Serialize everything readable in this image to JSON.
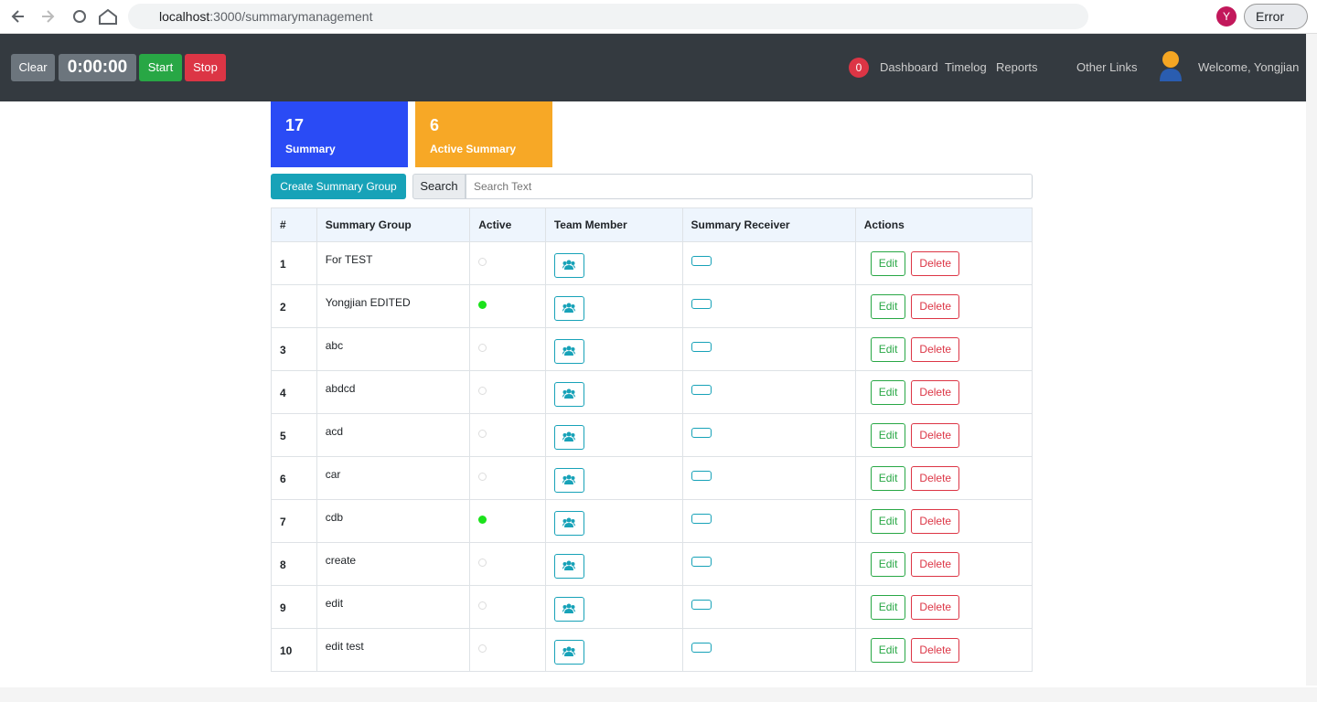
{
  "browser": {
    "url_host": "localhost",
    "url_path": ":3000/summarymanagement",
    "profile": "Y",
    "status": "Error"
  },
  "navbar": {
    "clear": "Clear",
    "timer": "0:00:00",
    "start": "Start",
    "stop": "Stop",
    "notifications": 0,
    "links": [
      "Dashboard",
      "Timelog",
      "Reports",
      "Other Links"
    ],
    "welcome": "Welcome, Yongjian"
  },
  "cards": [
    {
      "count": 17,
      "label": "Summary"
    },
    {
      "count": 6,
      "label": "Active Summary"
    }
  ],
  "toolbar": {
    "create": "Create Summary Group",
    "search": "Search",
    "placeholder": "Search Text"
  },
  "table": {
    "columns": [
      "#",
      "Summary Group",
      "Active",
      "Team Member",
      "Summary Receiver",
      "Actions"
    ],
    "edit": "Edit",
    "delete": "Delete",
    "rows": [
      {
        "number": 1,
        "group": "For TEST",
        "active": false
      },
      {
        "number": 2,
        "group": "Yongjian EDITED",
        "active": true
      },
      {
        "number": 3,
        "group": "abc",
        "active": false
      },
      {
        "number": 4,
        "group": "abdcd",
        "active": false
      },
      {
        "number": 5,
        "group": "acd",
        "active": false
      },
      {
        "number": 6,
        "group": "car",
        "active": false
      },
      {
        "number": 7,
        "group": "cdb",
        "active": true
      },
      {
        "number": 8,
        "group": "create",
        "active": false
      },
      {
        "number": 9,
        "group": "edit",
        "active": false
      },
      {
        "number": 10,
        "group": "edit test",
        "active": false
      }
    ]
  }
}
